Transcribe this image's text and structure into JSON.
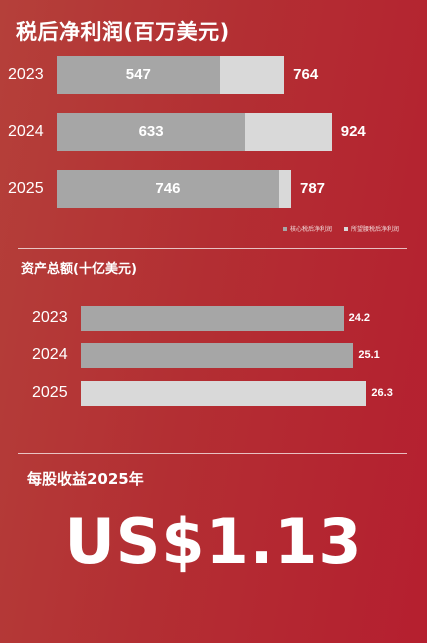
{
  "net_profit": {
    "title": "税后净利润(百万美元)",
    "legend": [
      {
        "label": "核心税后净利润",
        "color": "#a6a6a6"
      },
      {
        "label": "所望腰税后净利润",
        "color": "#d9d9d9"
      }
    ]
  },
  "assets": {
    "title": "资产总额(十亿美元)"
  },
  "eps": {
    "title": "每股收益2025年",
    "value": "US$1.13"
  },
  "chart_data": [
    {
      "type": "bar",
      "orientation": "horizontal",
      "title": "税后净利润(百万美元)",
      "categories": [
        "2023",
        "2024",
        "2025"
      ],
      "series": [
        {
          "name": "核心税后净利润",
          "values": [
            547,
            633,
            746
          ],
          "labels": [
            "547",
            "633",
            "746"
          ],
          "color": "#a6a6a6"
        },
        {
          "name": "所望腰税后净利润",
          "values": [
            764,
            924,
            787
          ],
          "labels": [
            "764",
            "924",
            "787"
          ],
          "color": "#d9d9d9"
        }
      ],
      "xlim": [
        0,
        1130
      ],
      "grid": false,
      "legend_position": "bottom-right"
    },
    {
      "type": "bar",
      "orientation": "horizontal",
      "title": "资产总额(十亿美元)",
      "categories": [
        "2023",
        "2024",
        "2025"
      ],
      "values": [
        24.2,
        25.1,
        26.3
      ],
      "labels": [
        "24.2",
        "25.1",
        "26.3"
      ],
      "colors": [
        "#a6a6a6",
        "#a6a6a6",
        "#d9d9d9"
      ],
      "xlim": [
        0,
        30.5
      ],
      "grid": false
    }
  ]
}
